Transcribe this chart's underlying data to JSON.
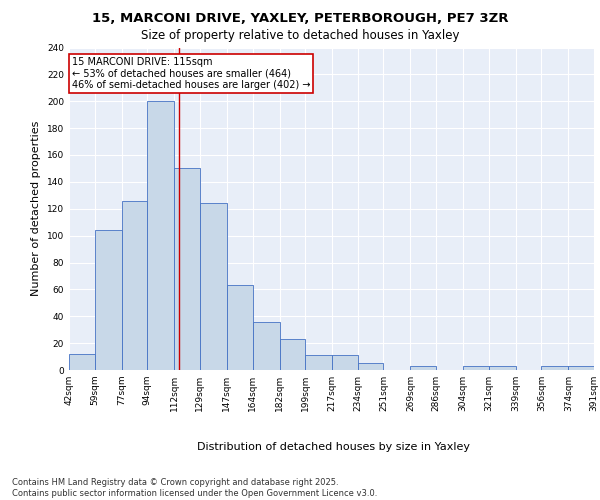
{
  "title1": "15, MARCONI DRIVE, YAXLEY, PETERBOROUGH, PE7 3ZR",
  "title2": "Size of property relative to detached houses in Yaxley",
  "xlabel": "Distribution of detached houses by size in Yaxley",
  "ylabel": "Number of detached properties",
  "bins": [
    42,
    59,
    77,
    94,
    112,
    129,
    147,
    164,
    182,
    199,
    217,
    234,
    251,
    269,
    286,
    304,
    321,
    339,
    356,
    374,
    391
  ],
  "bin_labels": [
    "42sqm",
    "59sqm",
    "77sqm",
    "94sqm",
    "112sqm",
    "129sqm",
    "147sqm",
    "164sqm",
    "182sqm",
    "199sqm",
    "217sqm",
    "234sqm",
    "251sqm",
    "269sqm",
    "286sqm",
    "304sqm",
    "321sqm",
    "339sqm",
    "356sqm",
    "374sqm",
    "391sqm"
  ],
  "values": [
    12,
    104,
    126,
    200,
    150,
    124,
    63,
    36,
    23,
    11,
    11,
    5,
    0,
    3,
    0,
    3,
    3,
    0,
    3,
    3
  ],
  "bar_color": "#c8d8e8",
  "bar_edge_color": "#4472c4",
  "property_line_x": 115,
  "annotation_text": "15 MARCONI DRIVE: 115sqm\n← 53% of detached houses are smaller (464)\n46% of semi-detached houses are larger (402) →",
  "annotation_box_color": "#ffffff",
  "annotation_box_edge": "#cc0000",
  "vline_color": "#cc0000",
  "ylim": [
    0,
    240
  ],
  "yticks": [
    0,
    20,
    40,
    60,
    80,
    100,
    120,
    140,
    160,
    180,
    200,
    220,
    240
  ],
  "background_color": "#e8eef8",
  "grid_color": "#ffffff",
  "footer_text": "Contains HM Land Registry data © Crown copyright and database right 2025.\nContains public sector information licensed under the Open Government Licence v3.0.",
  "title1_fontsize": 9.5,
  "title2_fontsize": 8.5,
  "xlabel_fontsize": 8,
  "ylabel_fontsize": 8,
  "tick_fontsize": 6.5,
  "annotation_fontsize": 7,
  "footer_fontsize": 6
}
